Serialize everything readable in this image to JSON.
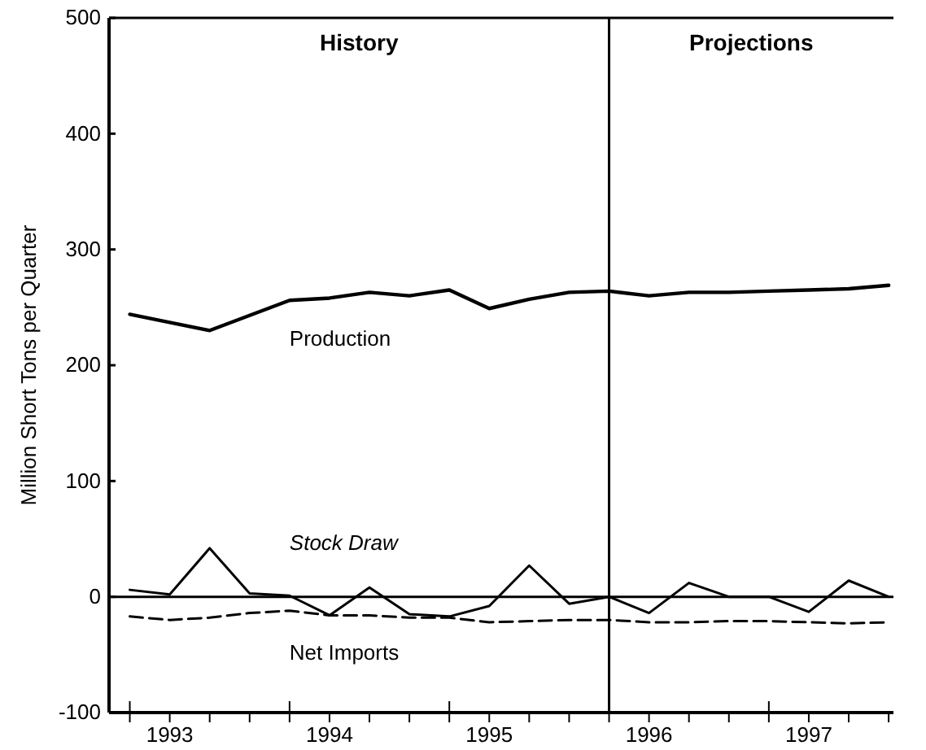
{
  "chart_data": {
    "type": "line",
    "ylabel": "Million Short Tons per Quarter",
    "x": [
      1993,
      1993.25,
      1993.5,
      1993.75,
      1994,
      1994.25,
      1994.5,
      1994.75,
      1995,
      1995.25,
      1995.5,
      1995.75,
      1996,
      1996.25,
      1996.5,
      1996.75,
      1997,
      1997.25,
      1997.5,
      1997.75
    ],
    "series": [
      {
        "name": "Production",
        "color": "#000000",
        "line_style": "solid",
        "values": [
          244,
          237,
          230,
          243,
          256,
          258,
          263,
          260,
          265,
          249,
          257,
          263,
          264,
          260,
          263,
          263,
          264,
          265,
          266,
          269
        ]
      },
      {
        "name": "Stock Draw",
        "color": "#000000",
        "line_style": "solid",
        "values": [
          6,
          2,
          42,
          3,
          1,
          -16,
          8,
          -15,
          -17,
          -8,
          27,
          -6,
          0,
          -14,
          12,
          0,
          0,
          -13,
          14,
          0
        ]
      },
      {
        "name": "Net Imports",
        "color": "#000000",
        "line_style": "dashed",
        "values": [
          -17,
          -20,
          -18,
          -14,
          -12,
          -16,
          -16,
          -18,
          -18,
          -22,
          -21,
          -20,
          -20,
          -22,
          -22,
          -21,
          -21,
          -22,
          -23,
          -22
        ]
      }
    ],
    "xlim": [
      1992.87,
      1997.78
    ],
    "xticks": [
      {
        "value": 1993,
        "label": null
      },
      {
        "value": 1993.25,
        "label": "1993"
      },
      {
        "value": 1993.5,
        "label": null
      },
      {
        "value": 1993.75,
        "label": null
      },
      {
        "value": 1994,
        "label": null
      },
      {
        "value": 1994.25,
        "label": "1994"
      },
      {
        "value": 1994.5,
        "label": null
      },
      {
        "value": 1994.75,
        "label": null
      },
      {
        "value": 1995,
        "label": null
      },
      {
        "value": 1995.25,
        "label": "1995"
      },
      {
        "value": 1995.5,
        "label": null
      },
      {
        "value": 1995.75,
        "label": null
      },
      {
        "value": 1996,
        "label": null
      },
      {
        "value": 1996.25,
        "label": "1996"
      },
      {
        "value": 1996.5,
        "label": null
      },
      {
        "value": 1996.75,
        "label": null
      },
      {
        "value": 1997,
        "label": null
      },
      {
        "value": 1997.25,
        "label": "1997"
      },
      {
        "value": 1997.5,
        "label": null
      },
      {
        "value": 1997.75,
        "label": null
      }
    ],
    "ylim": [
      -100,
      500
    ],
    "yticks": [
      -100,
      0,
      100,
      200,
      300,
      400,
      500
    ],
    "ref_lines": [
      {
        "axis": "x",
        "value": 1996
      },
      {
        "axis": "y",
        "value": 0
      }
    ],
    "annotations": [
      "History",
      "Projections"
    ],
    "grid": false,
    "legend": false
  }
}
